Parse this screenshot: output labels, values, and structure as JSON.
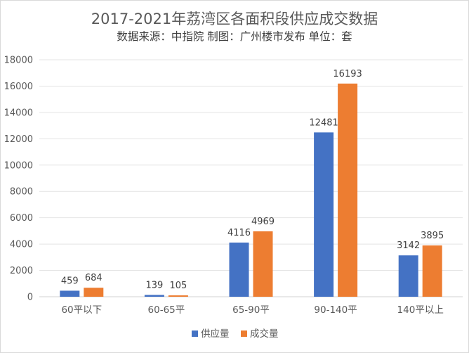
{
  "chart_data": {
    "type": "bar",
    "title": "2017-2021年荔湾区各面积段供应成交数据",
    "subtitle": "数据来源：中指院 制图：广州楼市发布 单位：套",
    "categories": [
      "60平以下",
      "60-65平",
      "65-90平",
      "90-140平",
      "140平以上"
    ],
    "series": [
      {
        "name": "供应量",
        "values": [
          459,
          139,
          4116,
          12481,
          3142
        ],
        "color": "#4472C4"
      },
      {
        "name": "成交量",
        "values": [
          684,
          105,
          4969,
          16193,
          3895
        ],
        "color": "#ED7D31"
      }
    ],
    "ylim": [
      0,
      18000
    ],
    "yticks": [
      "0",
      "2000",
      "4000",
      "6000",
      "8000",
      "10000",
      "12000",
      "14000",
      "16000",
      "18000"
    ],
    "grid": true,
    "legend": "bottom",
    "data_labels": true
  }
}
